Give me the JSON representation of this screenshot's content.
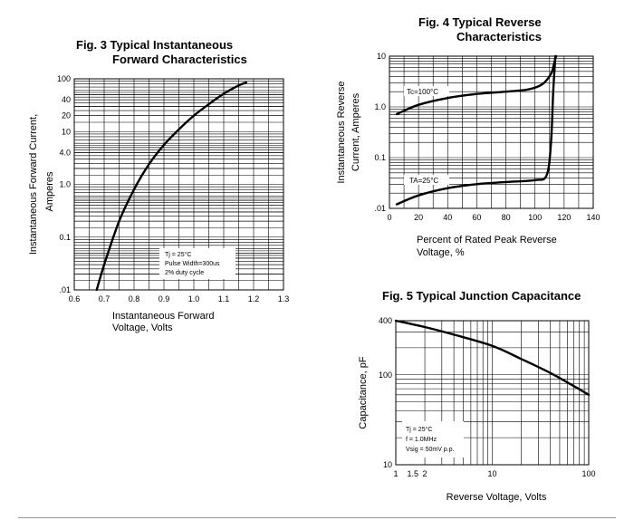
{
  "chart_data": [
    {
      "id": "fig3",
      "type": "line",
      "title_line1": "Fig. 3 Typical Instantaneous",
      "title_line2": "Forward Characteristics",
      "xlabel_line1": "Instantaneous Forward",
      "xlabel_line2": "Voltage, Volts",
      "ylabel_line1": "Instantaneous Forward Current,",
      "ylabel_line2": "Amperes",
      "xscale": "linear",
      "yscale": "log",
      "xlim": [
        0.6,
        1.3
      ],
      "ylim": [
        0.01,
        100
      ],
      "xticks": [
        {
          "v": 0.6,
          "label": "0.6"
        },
        {
          "v": 0.7,
          "label": "0.7"
        },
        {
          "v": 0.8,
          "label": "0.8"
        },
        {
          "v": 0.9,
          "label": "0.9"
        },
        {
          "v": 1.0,
          "label": "1.0"
        },
        {
          "v": 1.1,
          "label": "1.1"
        },
        {
          "v": 1.2,
          "label": "1.2"
        },
        {
          "v": 1.3,
          "label": "1.3"
        }
      ],
      "yticks": [
        {
          "v": 100,
          "label": "100"
        },
        {
          "v": 40,
          "label": "40"
        },
        {
          "v": 20,
          "label": "20"
        },
        {
          "v": 10,
          "label": "10"
        },
        {
          "v": 4,
          "label": "4.0"
        },
        {
          "v": 1,
          "label": "1.0"
        },
        {
          "v": 0.1,
          "label": "0.1"
        },
        {
          "v": 0.01,
          "label": ".01"
        }
      ],
      "annotation_lines": [
        "Tj = 25°C",
        "Pulse Width=300us",
        "2% duty cycle"
      ],
      "grid": true,
      "series": [
        {
          "x": [
            0.675,
            0.7,
            0.75,
            0.8,
            0.85,
            0.9,
            0.95,
            1.0,
            1.05,
            1.1,
            1.15,
            1.175
          ],
          "y": [
            0.01,
            0.03,
            0.2,
            0.8,
            2.4,
            5.6,
            11,
            20,
            33,
            52,
            75,
            85
          ]
        }
      ]
    },
    {
      "id": "fig4",
      "type": "line",
      "title_line1": "Fig. 4 Typical Reverse",
      "title_line2": "Characteristics",
      "xlabel_line1": "Percent of Rated Peak  Reverse",
      "xlabel_line2": "Voltage, %",
      "ylabel_line1": "Instantaneous Reverse",
      "ylabel_line2": "Current, Amperes",
      "xscale": "linear",
      "yscale": "log",
      "xlim": [
        0,
        140
      ],
      "ylim": [
        0.01,
        10
      ],
      "xticks": [
        {
          "v": 0,
          "label": "0"
        },
        {
          "v": 20,
          "label": "20"
        },
        {
          "v": 40,
          "label": "40"
        },
        {
          "v": 60,
          "label": "60"
        },
        {
          "v": 80,
          "label": "80"
        },
        {
          "v": 100,
          "label": "100"
        },
        {
          "v": 120,
          "label": "120"
        },
        {
          "v": 140,
          "label": "140"
        }
      ],
      "yticks": [
        {
          "v": 10,
          "label": "10"
        },
        {
          "v": 1,
          "label": "1.0"
        },
        {
          "v": 0.1,
          "label": "0.1"
        },
        {
          "v": 0.01,
          "label": ".01"
        }
      ],
      "grid": true,
      "series": [
        {
          "name": "Tc=100°C",
          "x": [
            5,
            20,
            40,
            60,
            80,
            95,
            105,
            111,
            113,
            114.5
          ],
          "y": [
            0.72,
            1.1,
            1.5,
            1.8,
            2.0,
            2.2,
            2.8,
            4.5,
            7,
            10
          ]
        },
        {
          "name": "TA=25°C",
          "x": [
            5,
            20,
            40,
            60,
            80,
            100,
            108,
            111,
            112.5,
            114
          ],
          "y": [
            0.012,
            0.018,
            0.025,
            0.03,
            0.033,
            0.036,
            0.045,
            0.2,
            2,
            10
          ]
        }
      ]
    },
    {
      "id": "fig5",
      "type": "line",
      "title_line1": "Fig. 5 Typical Junction Capacitance",
      "xlabel_line1": "Reverse Voltage, Volts",
      "ylabel_line1": "Capacitance, pF",
      "xscale": "log",
      "yscale": "log",
      "xlim": [
        1,
        100
      ],
      "ylim": [
        10,
        400
      ],
      "xticks": [
        {
          "v": 1,
          "label": "1"
        },
        {
          "v": 1.5,
          "label": "1.5"
        },
        {
          "v": 2,
          "label": "2"
        },
        {
          "v": 10,
          "label": "10"
        },
        {
          "v": 100,
          "label": "100"
        }
      ],
      "yticks": [
        {
          "v": 400,
          "label": "400"
        },
        {
          "v": 100,
          "label": "100"
        },
        {
          "v": 10,
          "label": "10"
        }
      ],
      "annotation_lines": [
        "Tj = 25°C",
        "f = 1.0MHz",
        "Vsig = 50mV p.p."
      ],
      "grid": true,
      "series": [
        {
          "x": [
            1,
            2,
            4,
            10,
            20,
            40,
            70,
            100
          ],
          "y": [
            400,
            340,
            280,
            210,
            150,
            105,
            75,
            60
          ]
        }
      ]
    }
  ]
}
